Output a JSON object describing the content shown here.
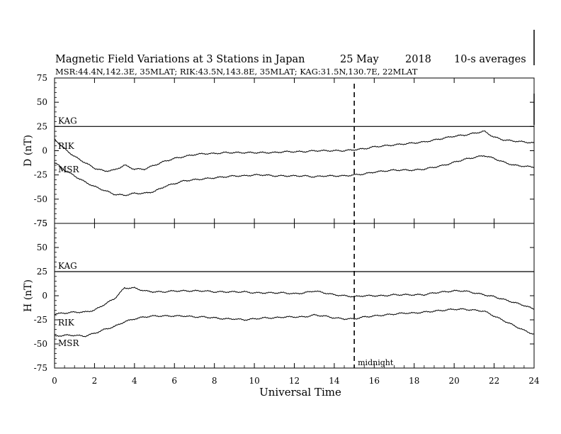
{
  "header": {
    "title": "Magnetic Field Variations at 3 Stations in Japan",
    "date": "25 May",
    "year": "2018",
    "averaging": "10-s averages",
    "stations_line": "MSR:44.4N,142.3E, 35MLAT;  RIK:43.5N,143.8E, 35MLAT;  KAG:31.5N,130.7E, 22MLAT"
  },
  "chart_data": [
    {
      "type": "line",
      "panel": "D",
      "ylabel": "D (nT)",
      "ylim": [
        -75,
        75
      ],
      "yticks": [
        -75,
        -50,
        -25,
        0,
        25,
        50,
        75
      ],
      "x": [
        0,
        0.5,
        1,
        1.5,
        2,
        2.5,
        3,
        3.5,
        4,
        4.5,
        5,
        5.5,
        6,
        6.5,
        7,
        7.5,
        8,
        8.5,
        9,
        9.5,
        10,
        10.5,
        11,
        11.5,
        12,
        12.5,
        13,
        13.5,
        14,
        14.5,
        15,
        15.5,
        16,
        16.5,
        17,
        17.5,
        18,
        18.5,
        19,
        19.5,
        20,
        20.5,
        21,
        21.5,
        22,
        22.5,
        23,
        23.5,
        24
      ],
      "series": [
        {
          "name": "KAG",
          "values": [
            25,
            25,
            25,
            25,
            25,
            25,
            25,
            25,
            25,
            25,
            25,
            25,
            25,
            25,
            25,
            25,
            25,
            25,
            25,
            25,
            25,
            25,
            25,
            25,
            25,
            25,
            25,
            25,
            25,
            25,
            25,
            25,
            25,
            25,
            25,
            25,
            25,
            25,
            25,
            25,
            25,
            25,
            25,
            25,
            25,
            25,
            25,
            25,
            25
          ]
        },
        {
          "name": "RIK",
          "values": [
            12,
            2,
            -6,
            -12,
            -18,
            -21,
            -20,
            -15,
            -19,
            -19,
            -15,
            -11,
            -8,
            -6,
            -4,
            -3,
            -3,
            -2,
            -2,
            -2,
            -2,
            -2,
            -2,
            -1,
            -1,
            -1,
            0,
            0,
            0,
            0,
            1,
            2,
            4,
            5,
            6,
            7,
            8,
            9,
            11,
            13,
            15,
            16,
            18,
            20,
            14,
            11,
            10,
            9,
            8
          ]
        },
        {
          "name": "MSR",
          "values": [
            -12,
            -20,
            -26,
            -32,
            -37,
            -41,
            -45,
            -46,
            -44,
            -44,
            -42,
            -37,
            -34,
            -31,
            -30,
            -29,
            -28,
            -27,
            -26,
            -26,
            -25,
            -25,
            -26,
            -26,
            -26,
            -26,
            -27,
            -26,
            -26,
            -26,
            -25,
            -24,
            -22,
            -21,
            -20,
            -20,
            -20,
            -19,
            -17,
            -15,
            -12,
            -9,
            -7,
            -5,
            -8,
            -12,
            -15,
            -16,
            -17
          ]
        }
      ]
    },
    {
      "type": "line",
      "panel": "H",
      "ylabel": "H (nT)",
      "ylim": [
        -75,
        75
      ],
      "yticks": [
        -75,
        -50,
        -25,
        0,
        25,
        50,
        75
      ],
      "x": [
        0,
        0.5,
        1,
        1.5,
        2,
        2.5,
        3,
        3.5,
        4,
        4.5,
        5,
        5.5,
        6,
        6.5,
        7,
        7.5,
        8,
        8.5,
        9,
        9.5,
        10,
        10.5,
        11,
        11.5,
        12,
        12.5,
        13,
        13.5,
        14,
        14.5,
        15,
        15.5,
        16,
        16.5,
        17,
        17.5,
        18,
        18.5,
        19,
        19.5,
        20,
        20.5,
        21,
        21.5,
        22,
        22.5,
        23,
        23.5,
        24
      ],
      "series": [
        {
          "name": "KAG",
          "values": [
            25,
            25,
            25,
            25,
            25,
            25,
            25,
            25,
            25,
            25,
            25,
            25,
            25,
            25,
            25,
            25,
            25,
            25,
            25,
            25,
            25,
            25,
            25,
            25,
            25,
            25,
            25,
            25,
            25,
            25,
            25,
            25,
            25,
            25,
            25,
            25,
            25,
            25,
            25,
            25,
            25,
            25,
            25,
            25,
            25,
            25,
            25,
            25,
            25
          ]
        },
        {
          "name": "RIK",
          "values": [
            -19,
            -18,
            -17,
            -17,
            -15,
            -9,
            -3,
            8,
            8,
            5,
            4,
            4,
            5,
            5,
            5,
            5,
            4,
            4,
            4,
            4,
            3,
            3,
            3,
            3,
            2,
            3,
            5,
            3,
            1,
            0,
            -1,
            0,
            0,
            0,
            1,
            1,
            1,
            1,
            3,
            4,
            5,
            5,
            3,
            1,
            -1,
            -4,
            -7,
            -10,
            -14
          ]
        },
        {
          "name": "MSR",
          "values": [
            -42,
            -41,
            -41,
            -42,
            -39,
            -35,
            -32,
            -27,
            -24,
            -22,
            -21,
            -21,
            -21,
            -21,
            -22,
            -22,
            -23,
            -24,
            -24,
            -25,
            -24,
            -23,
            -23,
            -22,
            -22,
            -22,
            -20,
            -21,
            -23,
            -24,
            -24,
            -22,
            -21,
            -20,
            -19,
            -18,
            -18,
            -17,
            -16,
            -15,
            -14,
            -14,
            -15,
            -16,
            -21,
            -26,
            -31,
            -36,
            -40
          ]
        }
      ]
    }
  ],
  "shared_axis": {
    "xlabel": "Universal Time",
    "xlim": [
      0,
      24
    ],
    "xticks": [
      0,
      2,
      4,
      6,
      8,
      10,
      12,
      14,
      16,
      18,
      20,
      22,
      24
    ]
  },
  "annotations": {
    "midnight_x": 15,
    "midnight_label": "midnight"
  }
}
